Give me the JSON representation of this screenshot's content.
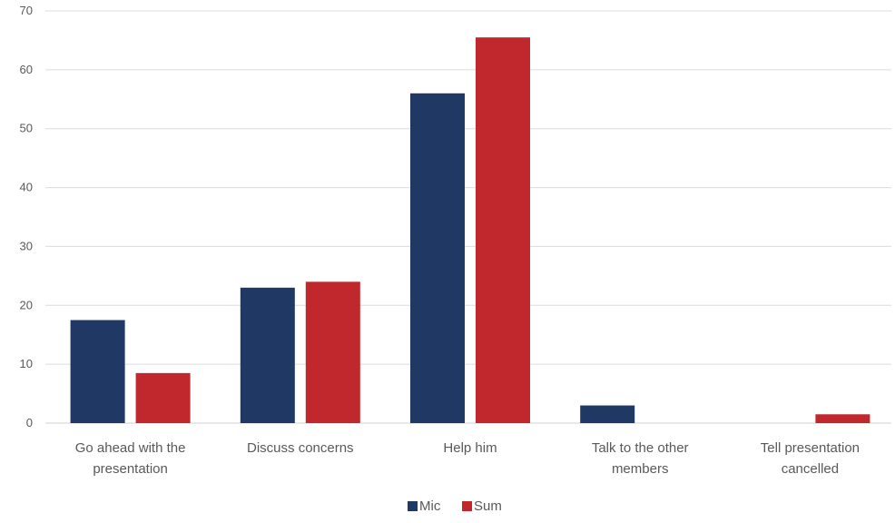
{
  "chart_data": {
    "type": "bar",
    "categories": [
      [
        "Go ahead with the",
        "presentation"
      ],
      [
        "Discuss concerns"
      ],
      [
        "Help him"
      ],
      [
        "Talk to the other",
        "members"
      ],
      [
        "Tell presentation",
        "cancelled"
      ]
    ],
    "series": [
      {
        "name": "Mic",
        "color": "#1f3864",
        "values": [
          17.5,
          23,
          56,
          3,
          0
        ]
      },
      {
        "name": "Sum",
        "color": "#c0282d",
        "values": [
          8.5,
          24,
          65.5,
          0,
          1.5
        ]
      }
    ],
    "yticks": [
      "0",
      "10",
      "20",
      "30",
      "40",
      "50",
      "60",
      "70"
    ],
    "ylim": [
      0,
      70
    ],
    "grid": true,
    "legend": "bottom-center"
  }
}
